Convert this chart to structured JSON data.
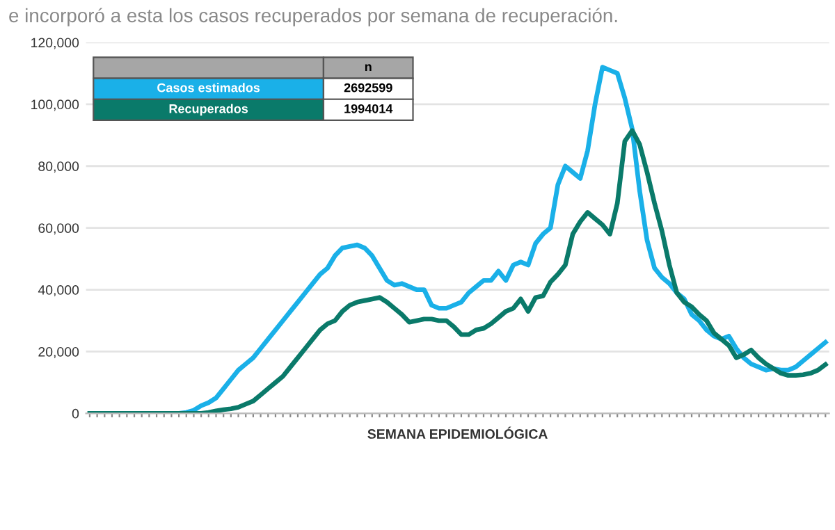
{
  "chart_data": {
    "type": "line",
    "annotations": [
      "e incorporó a esta los casos recuperados por semana de recuperación.",
      "2692599",
      "1994014"
    ],
    "xlabel": "SEMANA EPIDEMIOLÓGICA",
    "legend_title": "n",
    "legend": "top left",
    "categories": [
      null,
      null,
      null,
      null,
      null,
      null,
      null,
      null,
      null,
      null,
      null,
      null,
      null,
      null,
      null,
      null,
      null,
      null,
      null,
      null,
      null,
      null,
      null,
      null,
      null,
      null,
      null,
      null,
      null,
      null,
      null,
      null,
      null,
      null,
      null,
      null,
      null,
      null,
      null,
      null,
      null,
      null,
      null,
      null,
      null,
      null,
      null,
      null,
      null,
      null,
      null,
      null,
      null,
      null,
      null,
      null,
      null,
      null,
      null,
      null,
      null,
      null,
      null,
      null,
      null,
      null,
      null,
      null,
      null,
      null,
      null,
      null,
      null,
      null,
      null,
      null,
      null,
      null,
      null,
      null,
      null,
      null,
      null,
      null,
      null,
      null,
      null,
      null,
      null,
      null,
      null,
      null,
      null,
      null,
      null,
      null,
      null,
      null,
      null,
      null
    ],
    "series": [
      {
        "name": "Casos estimados",
        "color": "#1ab0e8",
        "values": [
          null,
          null,
          null,
          null,
          null,
          null,
          null,
          null,
          null,
          null,
          null,
          0,
          0,
          300,
          1000,
          2500,
          3500,
          5000,
          8000,
          11000,
          14000,
          16000,
          18000,
          21000,
          24000,
          27000,
          30000,
          33000,
          36000,
          39000,
          42000,
          45000,
          47000,
          51000,
          53500,
          54000,
          54500,
          53500,
          51000,
          47000,
          43000,
          41500,
          42000,
          41000,
          40000,
          40000,
          35000,
          34000,
          34000,
          35000,
          36000,
          39000,
          41000,
          43000,
          43000,
          46000,
          43000,
          48000,
          49000,
          48000,
          55000,
          58000,
          60000,
          74000,
          80000,
          78000,
          76000,
          85000,
          100000,
          112000,
          111000,
          110000,
          102000,
          92000,
          72000,
          56000,
          47000,
          44000,
          42000,
          39000,
          37000,
          32000,
          30000,
          27000,
          25000,
          24000,
          25000,
          21000,
          18000,
          16000,
          15000,
          14000,
          14500,
          14000,
          14000,
          15000,
          17000,
          19000,
          21000,
          23000
        ]
      },
      {
        "name": "Recuperados",
        "color": "#0a7a6a",
        "values": [
          0,
          0,
          0,
          0,
          0,
          0,
          0,
          0,
          0,
          0,
          0,
          0,
          0,
          0,
          0,
          0,
          300,
          800,
          1200,
          1500,
          2000,
          3000,
          4000,
          6000,
          8000,
          10000,
          12000,
          15000,
          18000,
          21000,
          24000,
          27000,
          29000,
          30000,
          33000,
          35000,
          36000,
          36500,
          37000,
          37500,
          36000,
          34000,
          32000,
          29500,
          30000,
          30500,
          30500,
          30000,
          30000,
          28000,
          25500,
          25500,
          27000,
          27500,
          29000,
          31000,
          33000,
          34000,
          37000,
          33000,
          37500,
          38000,
          42500,
          45000,
          48000,
          58000,
          62000,
          65000,
          63000,
          61000,
          58000,
          68000,
          88000,
          91500,
          87000,
          78000,
          68000,
          59000,
          48000,
          39000,
          36000,
          34500,
          32000,
          30000,
          26000,
          24000,
          22000,
          18000,
          19000,
          20500,
          18000,
          16000,
          14500,
          13000,
          12300,
          12300,
          12500,
          13000,
          14000,
          15800
        ]
      }
    ],
    "ylim": [
      0,
      120000
    ],
    "yticks": [
      0,
      {
        "value": 20000,
        "label": "20,000"
      },
      {
        "value": 40000,
        "label": "40,000"
      },
      {
        "value": 60000,
        "label": "60,000"
      },
      {
        "value": 80000,
        "label": "80,000"
      },
      {
        "value": 100000,
        "label": "100,000"
      },
      {
        "value": 120000,
        "label": "120,000"
      }
    ],
    "grid": "y",
    "tick_labels": "y",
    "marker": "none",
    "line_style": "solid"
  }
}
